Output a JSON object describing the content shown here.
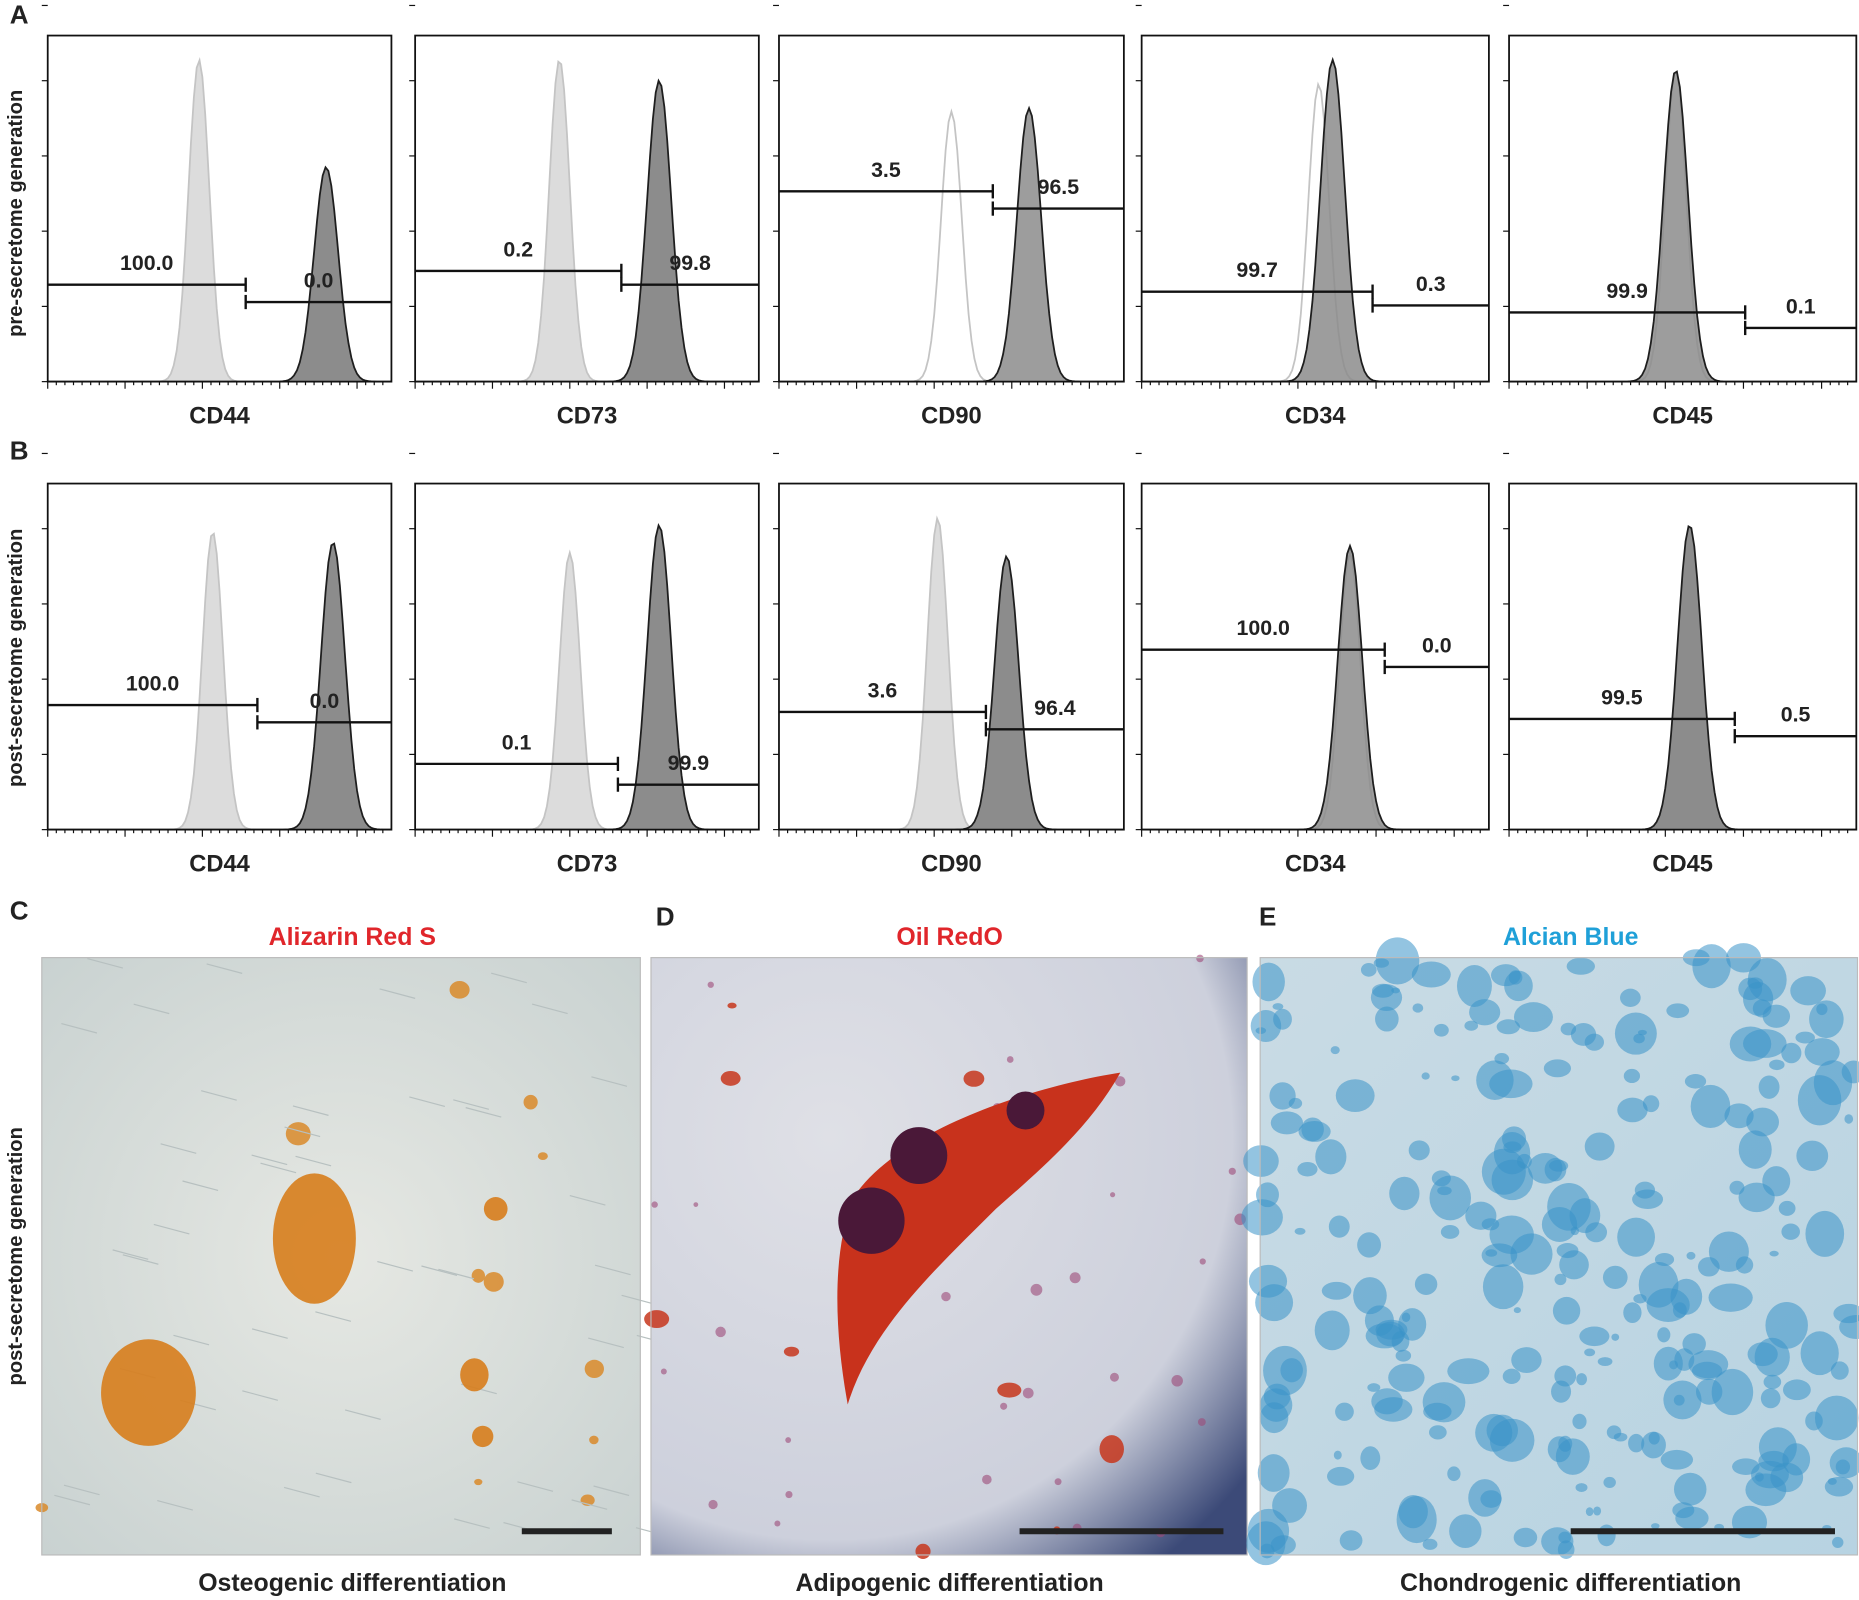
{
  "panel_labels": [
    "A",
    "B",
    "C",
    "D",
    "E"
  ],
  "row_labels": [
    "pre-secretome generation",
    "post-secretome generation",
    "post-secretome generation"
  ],
  "flow": [
    {
      "markers": [
        {
          "name": "CD44",
          "gates": [
            "100.0",
            "0.0"
          ]
        },
        {
          "name": "CD73",
          "gates": [
            "0.2",
            "99.8"
          ]
        },
        {
          "name": "CD90",
          "gates": [
            "3.5",
            "96.5"
          ]
        },
        {
          "name": "CD34",
          "gates": [
            "99.7",
            "0.3"
          ]
        },
        {
          "name": "CD45",
          "gates": [
            "99.9",
            "0.1"
          ]
        }
      ]
    },
    {
      "markers": [
        {
          "name": "CD44",
          "gates": [
            "100.0",
            "0.0"
          ]
        },
        {
          "name": "CD73",
          "gates": [
            "0.1",
            "99.9"
          ]
        },
        {
          "name": "CD90",
          "gates": [
            "3.6",
            "96.4"
          ]
        },
        {
          "name": "CD34",
          "gates": [
            "100.0",
            "0.0"
          ]
        },
        {
          "name": "CD45",
          "gates": [
            "99.5",
            "0.5"
          ]
        }
      ]
    }
  ],
  "stains": [
    {
      "title": "Alizarin Red S",
      "caption": "Osteogenic differentiation"
    },
    {
      "title": "Oil RedO",
      "caption": "Adipogenic differentiation"
    },
    {
      "title": "Alcian Blue",
      "caption": "Chondrogenic differentiation"
    }
  ]
}
